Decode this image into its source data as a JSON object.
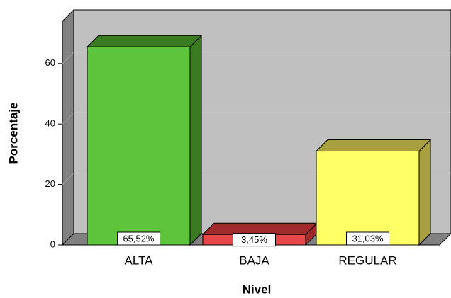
{
  "chart_data": {
    "type": "bar3d",
    "x_label": "Nivel",
    "y_label": "Porcentaje",
    "categories": [
      "ALTA",
      "BAJA",
      "REGULAR"
    ],
    "values": [
      65.52,
      3.45,
      31.03
    ],
    "value_labels": [
      "65,52%",
      "3,45%",
      "31,03%"
    ],
    "colors": [
      "#5ec43c",
      "#e8474a",
      "#ffff66"
    ],
    "side_colors": [
      "#3a7a22",
      "#a02a2c",
      "#a8a040"
    ],
    "ylim": [
      0,
      74
    ],
    "yticks": [
      0,
      20,
      40,
      60
    ],
    "grid": true
  }
}
